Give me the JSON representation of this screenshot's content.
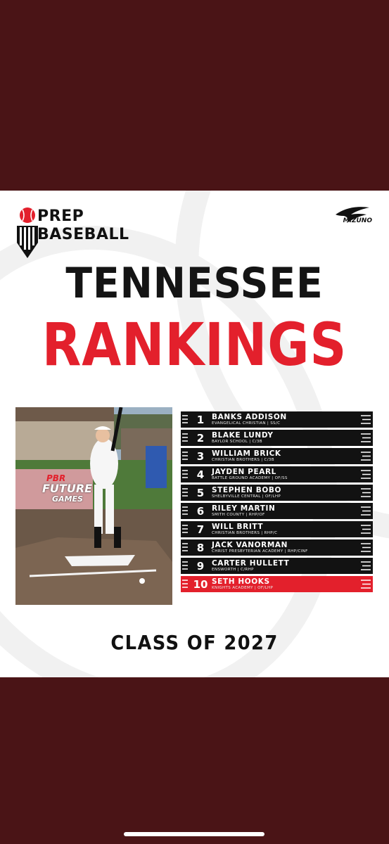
{
  "brand": {
    "line1": "PREP",
    "line2": "BASEBALL",
    "sponsor": "MIZUNO"
  },
  "title": {
    "line1": "TENNESSEE",
    "line2": "RANKINGS"
  },
  "photo": {
    "banner_brand": "PBR",
    "banner_line": "FUTURE",
    "banner_line2": "GAMES"
  },
  "rankings": [
    {
      "rank": "1",
      "name": "BANKS ADDISON",
      "school": "EVANGELICAL CHRISTIAN | SS/C",
      "highlight": false
    },
    {
      "rank": "2",
      "name": "BLAKE LUNDY",
      "school": "BAYLOR SCHOOL | C/3B",
      "highlight": false
    },
    {
      "rank": "3",
      "name": "WILLIAM BRICK",
      "school": "CHRISTIAN BROTHERS | C/3B",
      "highlight": false
    },
    {
      "rank": "4",
      "name": "JAYDEN PEARL",
      "school": "BATTLE GROUND ACADEMY | OF/SS",
      "highlight": false
    },
    {
      "rank": "5",
      "name": "STEPHEN BOBO",
      "school": "SHELBYVILLE CENTRAL | OF/LHP",
      "highlight": false
    },
    {
      "rank": "6",
      "name": "RILEY MARTIN",
      "school": "SMITH COUNTY | RHP/OF",
      "highlight": false
    },
    {
      "rank": "7",
      "name": "WILL BRITT",
      "school": "CHRISTIAN BROTHERS | RHP/C",
      "highlight": false
    },
    {
      "rank": "8",
      "name": "JACK VANORMAN",
      "school": "CHRIST PRESBYTERIAN ACADEMY | RHP/CINF",
      "highlight": false
    },
    {
      "rank": "9",
      "name": "CARTER HULLETT",
      "school": "ENSWORTH | C/RHP",
      "highlight": false
    },
    {
      "rank": "10",
      "name": "SETH HOOKS",
      "school": "KNIGHTS ACADEMY | OF/LHP",
      "highlight": true
    }
  ],
  "footer": {
    "class_label": "CLASS OF 2027"
  },
  "colors": {
    "maroon": "#4a1416",
    "red": "#e3202c",
    "black": "#121212"
  }
}
